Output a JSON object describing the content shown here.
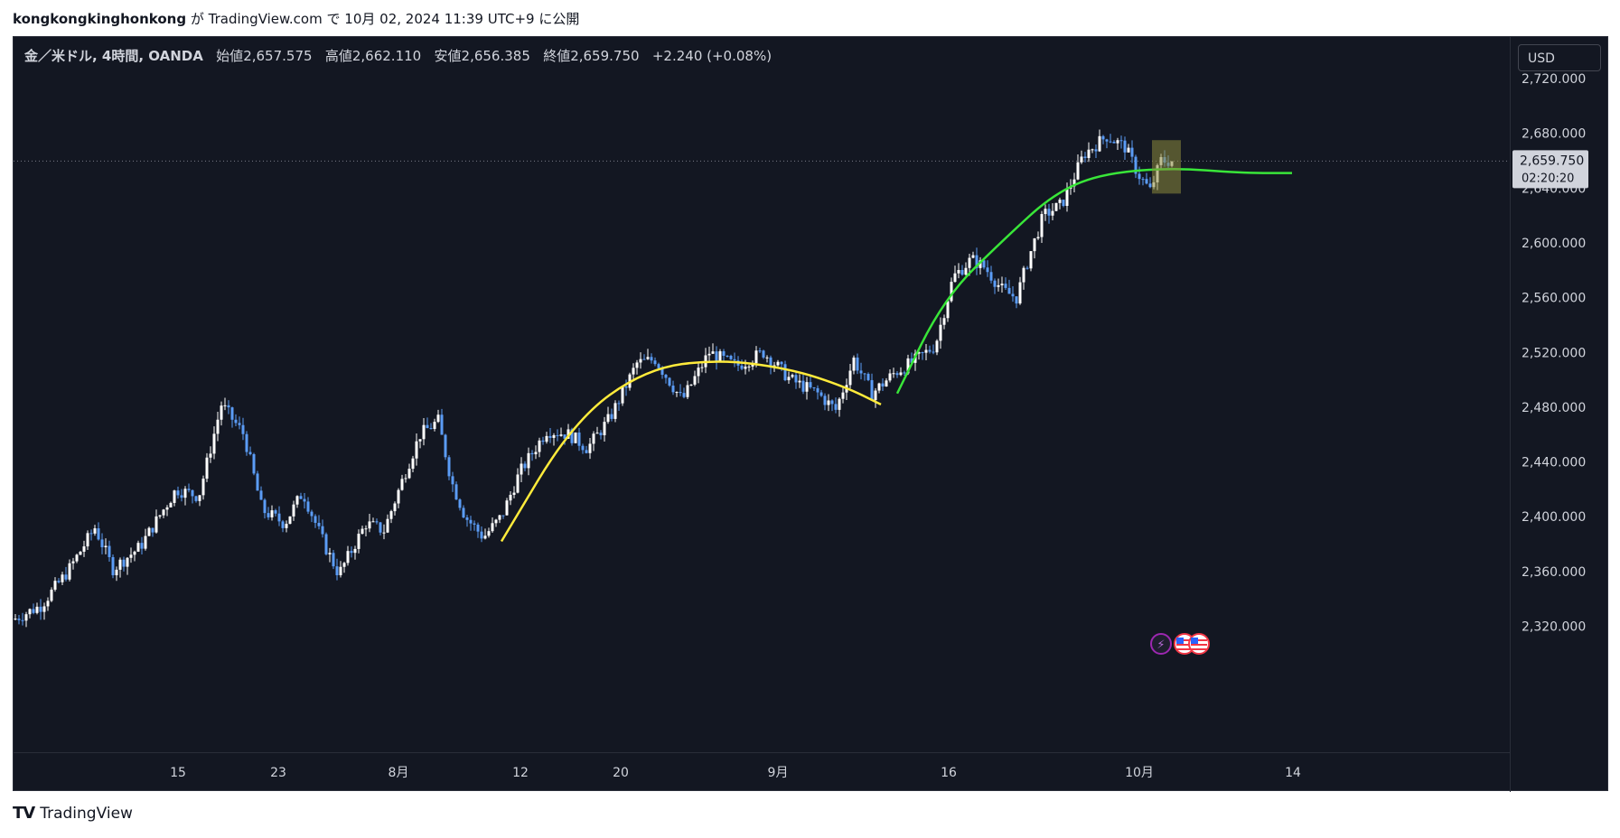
{
  "header": {
    "author": "kongkongkinghonkong",
    "by": "が",
    "site": "TradingView.com",
    "on": "で",
    "date": "10月 02, 2024 11:39 UTC+9",
    "published": "に公開"
  },
  "legend": {
    "symbol": "金／米ドル, 4時間, OANDA",
    "open_label": "始値",
    "open": "2,657.575",
    "high_label": "高値",
    "high": "2,662.110",
    "low_label": "安値",
    "low": "2,656.385",
    "close_label": "終値",
    "close": "2,659.750",
    "change": "+2.240 (+0.08%)"
  },
  "price_axis": {
    "currency": "USD",
    "labels": [
      "2,720.000",
      "2,680.000",
      "2,640.000",
      "2,600.000",
      "2,560.000",
      "2,520.000",
      "2,480.000",
      "2,440.000",
      "2,400.000",
      "2,360.000",
      "2,320.000"
    ],
    "last_price": "2,659.750",
    "countdown": "02:20:20"
  },
  "time_axis": {
    "labels": [
      "15",
      "23",
      "8月",
      "12",
      "20",
      "9月",
      "16",
      "10月",
      "14"
    ]
  },
  "footer": {
    "brand": "TradingView",
    "logo_glyph": "𝗧𝗩"
  },
  "colors": {
    "background": "#131722",
    "up_candle": "#ffffff",
    "down_candle": "#5b9cf6",
    "yellow_curve": "#ffeb3b",
    "green_curve": "#39e639",
    "highlight_box": "#8d8a3c"
  },
  "chart_data": {
    "type": "candlestick",
    "timeframe": "4時間",
    "y_range": [
      2300,
      2740
    ],
    "price_ticks": [
      2720,
      2680,
      2640,
      2600,
      2560,
      2520,
      2480,
      2440,
      2400,
      2360,
      2320
    ],
    "last_price": 2659.75,
    "close_path": [
      [
        0,
        2325
      ],
      [
        30,
        2335
      ],
      [
        60,
        2360
      ],
      [
        90,
        2392
      ],
      [
        110,
        2362
      ],
      [
        140,
        2378
      ],
      [
        180,
        2420
      ],
      [
        205,
        2415
      ],
      [
        230,
        2482
      ],
      [
        255,
        2460
      ],
      [
        275,
        2405
      ],
      [
        300,
        2395
      ],
      [
        320,
        2418
      ],
      [
        345,
        2378
      ],
      [
        360,
        2358
      ],
      [
        390,
        2395
      ],
      [
        410,
        2390
      ],
      [
        435,
        2435
      ],
      [
        450,
        2460
      ],
      [
        470,
        2470
      ],
      [
        485,
        2425
      ],
      [
        500,
        2400
      ],
      [
        520,
        2385
      ],
      [
        540,
        2400
      ],
      [
        560,
        2432
      ],
      [
        590,
        2463
      ],
      [
        615,
        2460
      ],
      [
        635,
        2450
      ],
      [
        660,
        2472
      ],
      [
        690,
        2512
      ],
      [
        710,
        2515
      ],
      [
        740,
        2485
      ],
      [
        770,
        2520
      ],
      [
        800,
        2510
      ],
      [
        830,
        2520
      ],
      [
        860,
        2500
      ],
      [
        890,
        2490
      ],
      [
        910,
        2478
      ],
      [
        930,
        2515
      ],
      [
        950,
        2490
      ],
      [
        975,
        2505
      ],
      [
        1000,
        2515
      ],
      [
        1020,
        2525
      ],
      [
        1040,
        2575
      ],
      [
        1060,
        2588
      ],
      [
        1075,
        2582
      ],
      [
        1095,
        2565
      ],
      [
        1110,
        2560
      ],
      [
        1125,
        2592
      ],
      [
        1140,
        2620
      ],
      [
        1160,
        2628
      ],
      [
        1185,
        2665
      ],
      [
        1210,
        2678
      ],
      [
        1230,
        2670
      ],
      [
        1245,
        2650
      ],
      [
        1258,
        2638
      ],
      [
        1270,
        2660
      ],
      [
        1282,
        2659.75
      ]
    ],
    "drawings": [
      {
        "type": "curve",
        "color": "yellow",
        "points": [
          [
            540,
            2382
          ],
          [
            620,
            2470
          ],
          [
            700,
            2508
          ],
          [
            780,
            2515
          ],
          [
            860,
            2508
          ],
          [
            920,
            2495
          ],
          [
            960,
            2482
          ]
        ]
      },
      {
        "type": "curve",
        "color": "green",
        "points": [
          [
            978,
            2490
          ],
          [
            1030,
            2560
          ],
          [
            1100,
            2605
          ],
          [
            1150,
            2635
          ],
          [
            1200,
            2650
          ],
          [
            1280,
            2655
          ],
          [
            1360,
            2651
          ],
          [
            1415,
            2651
          ]
        ]
      },
      {
        "type": "box",
        "x": [
          1260,
          1292
        ],
        "y": [
          2636,
          2675
        ]
      }
    ]
  }
}
